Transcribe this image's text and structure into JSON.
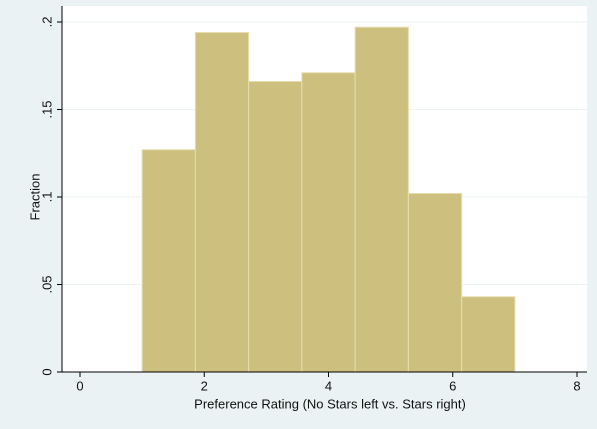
{
  "chart_data": {
    "type": "histogram",
    "xlabel": "Preference Rating (No Stars left vs. Stars right)",
    "ylabel": "Fraction",
    "bins": [
      1,
      1.857,
      2.714,
      3.571,
      4.429,
      5.286,
      6.143,
      7
    ],
    "values": [
      0.127,
      0.194,
      0.166,
      0.171,
      0.197,
      0.102,
      0.043
    ],
    "color": "#cdc07f",
    "xlim": [
      0,
      8
    ],
    "xticks": [
      0,
      2,
      4,
      6,
      8
    ],
    "ylim": [
      0,
      0.2
    ],
    "yticks": [
      0,
      {
        "value": 0.05,
        "label": ".05"
      },
      {
        "value": 0.1,
        "label": ".1"
      },
      {
        "value": 0.15,
        "label": ".15"
      },
      {
        "value": 0.2,
        "label": ".2"
      }
    ],
    "grid": true
  }
}
